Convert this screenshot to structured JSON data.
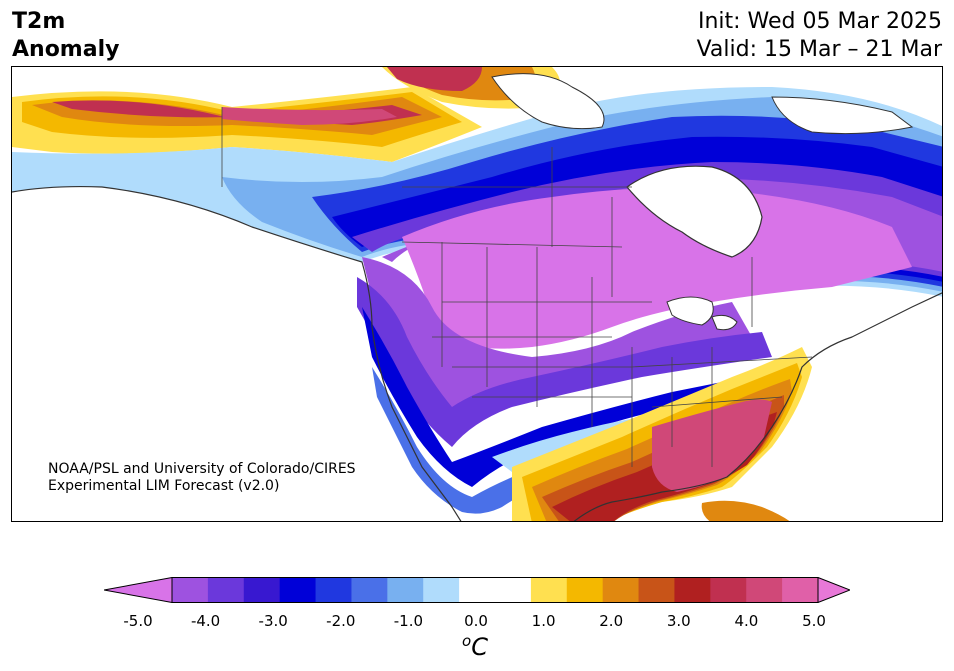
{
  "header": {
    "title_line1": "T2m",
    "title_line2": "Anomaly",
    "init": "Init: Wed 05 Mar 2025",
    "valid": "Valid: 15 Mar – 21 Mar"
  },
  "credit": {
    "line1": "NOAA/PSL and University of Colorado/CIRES",
    "line2": "Experimental LIM Forecast (v2.0)"
  },
  "colorbar": {
    "ticks": [
      "-5.0",
      "-4.0",
      "-3.0",
      "-2.0",
      "-1.0",
      "0.0",
      "1.0",
      "2.0",
      "3.0",
      "4.0",
      "5.0"
    ],
    "units_symbol": "o",
    "units_letter": "C",
    "colors": [
      "#d873e8",
      "#9e52e0",
      "#6b38db",
      "#3818d0",
      "#0000d8",
      "#2038e0",
      "#4a70e8",
      "#78b0f0",
      "#b0dcfc",
      "#ffffff",
      "#ffffff",
      "#ffe050",
      "#f4b800",
      "#e08810",
      "#c85418",
      "#b02020",
      "#c03050",
      "#d04878",
      "#e060a8",
      "#e878d8"
    ]
  },
  "map": {
    "colors": {
      "deep_purple": "#d873e8",
      "purple": "#9e52e0",
      "violet": "#6b38db",
      "indigo": "#3818d0",
      "blue": "#0000d8",
      "mid_blue": "#2038e0",
      "light_blue": "#4a70e8",
      "sky": "#78b0f0",
      "pale_sky": "#b0dcfc",
      "yellow": "#ffe050",
      "gold": "#f4b800",
      "orange": "#e08810",
      "dark_orange": "#c85418",
      "red": "#b02020",
      "crimson": "#c03050",
      "pink": "#d04878",
      "magenta": "#e060a8"
    }
  }
}
